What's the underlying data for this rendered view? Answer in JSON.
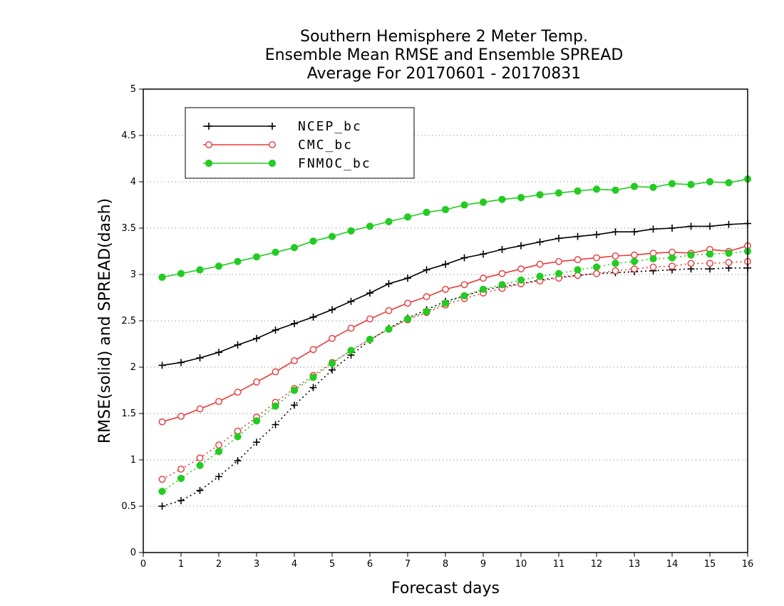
{
  "chart_data": {
    "type": "line",
    "title_lines": [
      "Southern Hemisphere 2 Meter Temp.",
      "Ensemble Mean RMSE and Ensemble SPREAD",
      "Average For 20170601 - 20170831"
    ],
    "xlabel": "Forecast days",
    "ylabel": "RMSE(solid) and SPREAD(dash)",
    "xlim": [
      0,
      16
    ],
    "ylim": [
      0,
      5
    ],
    "xticks": [
      0,
      1,
      2,
      3,
      4,
      5,
      6,
      7,
      8,
      9,
      10,
      11,
      12,
      13,
      14,
      15,
      16
    ],
    "yticks": [
      0,
      0.5,
      1,
      1.5,
      2,
      2.5,
      3,
      3.5,
      4,
      4.5,
      5
    ],
    "x": [
      0.5,
      1,
      1.5,
      2,
      2.5,
      3,
      3.5,
      4,
      4.5,
      5,
      5.5,
      6,
      6.5,
      7,
      7.5,
      8,
      8.5,
      9,
      9.5,
      10,
      10.5,
      11,
      11.5,
      12,
      12.5,
      13,
      13.5,
      14,
      14.5,
      15,
      15.5,
      16
    ],
    "grid": "horizontal dotted",
    "legend_position": "top-left",
    "series": [
      {
        "name": "NCEP_bc",
        "color": "#000000",
        "marker": "plus",
        "rmse": [
          2.02,
          2.05,
          2.1,
          2.16,
          2.24,
          2.31,
          2.4,
          2.47,
          2.54,
          2.62,
          2.71,
          2.8,
          2.9,
          2.96,
          3.05,
          3.11,
          3.18,
          3.22,
          3.27,
          3.31,
          3.35,
          3.39,
          3.41,
          3.43,
          3.46,
          3.46,
          3.49,
          3.5,
          3.52,
          3.52,
          3.54,
          3.55
        ],
        "spread": [
          0.5,
          0.56,
          0.67,
          0.82,
          0.99,
          1.19,
          1.38,
          1.59,
          1.78,
          1.97,
          2.13,
          2.29,
          2.42,
          2.53,
          2.62,
          2.71,
          2.77,
          2.83,
          2.87,
          2.9,
          2.94,
          2.97,
          2.99,
          3.01,
          3.02,
          3.03,
          3.04,
          3.05,
          3.06,
          3.06,
          3.07,
          3.07
        ]
      },
      {
        "name": "CMC_bc",
        "color": "#e83a3a",
        "marker": "open-circle",
        "rmse": [
          1.41,
          1.47,
          1.55,
          1.63,
          1.73,
          1.84,
          1.95,
          2.07,
          2.19,
          2.31,
          2.42,
          2.52,
          2.61,
          2.69,
          2.76,
          2.84,
          2.89,
          2.96,
          3.01,
          3.06,
          3.11,
          3.14,
          3.16,
          3.18,
          3.2,
          3.21,
          3.23,
          3.24,
          3.23,
          3.27,
          3.25,
          3.31
        ],
        "spread": [
          0.79,
          0.9,
          1.02,
          1.16,
          1.31,
          1.46,
          1.62,
          1.77,
          1.91,
          2.05,
          2.18,
          2.3,
          2.41,
          2.51,
          2.59,
          2.67,
          2.74,
          2.8,
          2.85,
          2.9,
          2.93,
          2.96,
          2.99,
          3.01,
          3.04,
          3.06,
          3.08,
          3.09,
          3.12,
          3.12,
          3.13,
          3.14
        ]
      },
      {
        "name": "FNMOC_bc",
        "color": "#22cc22",
        "marker": "filled-circle",
        "rmse": [
          2.97,
          3.01,
          3.05,
          3.09,
          3.14,
          3.19,
          3.24,
          3.29,
          3.36,
          3.41,
          3.47,
          3.52,
          3.57,
          3.62,
          3.67,
          3.7,
          3.75,
          3.78,
          3.81,
          3.83,
          3.86,
          3.88,
          3.9,
          3.92,
          3.91,
          3.95,
          3.94,
          3.98,
          3.97,
          4.0,
          3.99,
          4.03
        ],
        "spread": [
          0.66,
          0.8,
          0.94,
          1.09,
          1.25,
          1.42,
          1.58,
          1.75,
          1.89,
          2.04,
          2.18,
          2.3,
          2.41,
          2.52,
          2.6,
          2.69,
          2.77,
          2.84,
          2.89,
          2.94,
          2.98,
          3.01,
          3.05,
          3.08,
          3.12,
          3.14,
          3.17,
          3.18,
          3.21,
          3.22,
          3.23,
          3.25
        ]
      }
    ]
  }
}
